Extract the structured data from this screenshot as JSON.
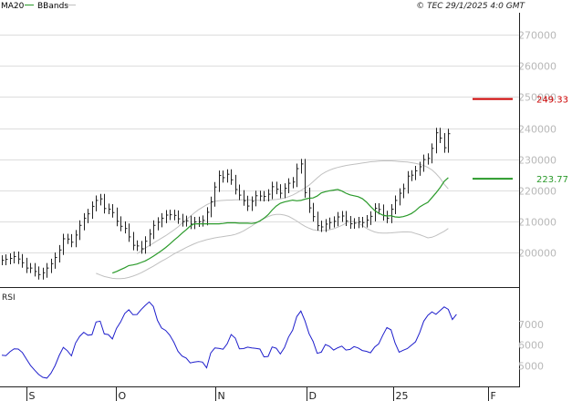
{
  "header": {
    "legend": [
      {
        "label": "MA20",
        "color": "#2a9a2a"
      },
      {
        "label": "BBands",
        "color": "#c0c0c0"
      }
    ],
    "copyright": "© TEC 29/1/2025 4:0 GMT"
  },
  "colors": {
    "candle": "#222222",
    "ma": "#2a9a2a",
    "bands": "#c0c0c0",
    "grid": "#dddddd",
    "rsi": "#1f1fcc",
    "resistance": "#cc0000",
    "support": "#2a9a2a",
    "axis": "#b8b8b8"
  },
  "chart_data": [
    {
      "type": "line",
      "panel": "price",
      "ylim": [
        189,
        277
      ],
      "y_ticks": [
        "270000",
        "260000",
        "250000",
        "240000",
        "230000",
        "220000",
        "210000",
        "200000"
      ],
      "x_ticks": [
        "S",
        "O",
        "N",
        "D",
        "25",
        "F"
      ],
      "price_close": [
        197.6,
        197.9,
        198.2,
        198.8,
        198.0,
        196.8,
        195.1,
        195.1,
        194.0,
        193.0,
        193.6,
        195.1,
        196.5,
        198.5,
        200.9,
        204.5,
        204.4,
        203.4,
        205.7,
        208.8,
        211.1,
        212.5,
        214.9,
        216.8,
        217.3,
        214.2,
        214.0,
        212.9,
        210.1,
        208.5,
        207.8,
        205.1,
        202.4,
        202.2,
        201.3,
        203.7,
        206.0,
        208.8,
        209.8,
        211.1,
        212.1,
        212.2,
        212.0,
        210.9,
        210.0,
        210.3,
        209.2,
        209.9,
        210.0,
        210.4,
        213.0,
        216.4,
        221.1,
        224.8,
        224.1,
        225.2,
        223.4,
        220.3,
        218.5,
        216.7,
        215.0,
        216.5,
        218.3,
        218.2,
        218.1,
        218.8,
        221.2,
        220.4,
        219.1,
        220.7,
        222.3,
        222.7,
        227.0,
        228.5,
        219.3,
        214.4,
        211.6,
        208.7,
        208.3,
        209.2,
        209.7,
        210.1,
        211.5,
        211.8,
        210.2,
        209.3,
        209.5,
        209.9,
        209.7,
        210.5,
        211.7,
        214.3,
        213.9,
        211.9,
        211.1,
        214.0,
        216.8,
        219.1,
        220.6,
        224.6,
        224.9,
        226.3,
        227.6,
        229.9,
        230.3,
        233.5,
        238.5,
        236.8,
        233.7,
        238.2
      ],
      "ma20": [
        193.5,
        194.0,
        194.6,
        195.2,
        195.9,
        196.1,
        196.4,
        196.9,
        197.4,
        198.1,
        198.9,
        199.8,
        200.7,
        201.7,
        202.8,
        204.0,
        205.1,
        206.3,
        207.4,
        208.6,
        209.3,
        209.3,
        209.3,
        209.3,
        209.3,
        209.3,
        209.3,
        209.4,
        209.6,
        209.6,
        209.6,
        209.5,
        209.5,
        209.5,
        209.4,
        209.6,
        210.2,
        211.1,
        212.2,
        213.7,
        215.0,
        215.9,
        216.3,
        216.6,
        216.9,
        216.7,
        216.8,
        217.2,
        217.5,
        217.6,
        218.2,
        219.2,
        219.6,
        219.9,
        220.1,
        220.3,
        219.8,
        219.1,
        218.6,
        218.3,
        218.0,
        217.4,
        216.3,
        214.9,
        213.6,
        212.7,
        212.1,
        211.8,
        211.9,
        211.5,
        211.4,
        211.6,
        212.0,
        212.6,
        213.5,
        214.7,
        215.5,
        216.2,
        217.7,
        219.2,
        220.9,
        222.9,
        224.1
      ],
      "bb_upper": [
        199.7,
        200.6,
        201.5,
        202.3,
        203.1,
        203.9,
        204.7,
        205.5,
        206.4,
        207.3,
        208.3,
        209.5,
        210.6,
        211.7,
        212.8,
        213.8,
        214.6,
        215.4,
        216.0,
        216.5,
        216.7,
        216.8,
        216.9,
        216.9,
        217.0,
        217.0,
        217.0,
        217.0,
        216.9,
        216.9,
        216.8,
        216.8,
        216.9,
        217.0,
        217.1,
        217.3,
        217.6,
        218.0,
        218.5,
        219.2,
        220.0,
        220.8,
        221.7,
        222.8,
        224.0,
        225.1,
        225.9,
        226.5,
        227.0,
        227.4,
        227.7,
        228.0,
        228.2,
        228.4,
        228.6,
        228.8,
        229.0,
        229.2,
        229.3,
        229.4,
        229.5,
        229.5,
        229.5,
        229.4,
        229.3,
        229.2,
        229.1,
        228.9,
        228.7,
        228.4,
        228.0,
        227.4,
        226.6,
        225.4,
        223.9,
        222.0,
        220.5
      ],
      "bb_lower": [
        193.4,
        192.9,
        192.4,
        192.1,
        191.8,
        191.7,
        191.7,
        191.8,
        192.1,
        192.5,
        193.0,
        193.6,
        194.3,
        195.0,
        195.7,
        196.5,
        197.3,
        198.0,
        198.8,
        199.6,
        200.3,
        201.0,
        201.7,
        202.3,
        202.9,
        203.4,
        203.8,
        204.2,
        204.5,
        204.8,
        205.0,
        205.2,
        205.4,
        205.6,
        205.9,
        206.4,
        207.0,
        207.8,
        208.6,
        209.5,
        210.3,
        211.0,
        211.6,
        212.1,
        212.3,
        212.3,
        212.1,
        211.7,
        211.0,
        210.2,
        209.3,
        208.5,
        207.9,
        207.4,
        207.2,
        207.1,
        207.2,
        207.4,
        207.7,
        208.2,
        208.8,
        209.5,
        210.0,
        210.1,
        209.6,
        208.8,
        207.9,
        207.2,
        206.7,
        206.4,
        206.3,
        206.3,
        206.4,
        206.5,
        206.6,
        206.7,
        206.7,
        206.6,
        206.2,
        205.8,
        205.3,
        204.8,
        205.0,
        205.5,
        206.2,
        206.9,
        207.8
      ],
      "levels": [
        {
          "label": "249.33",
          "value": 249.33,
          "kind": "resistance"
        },
        {
          "label": "223.77",
          "value": 223.77,
          "kind": "support"
        }
      ]
    },
    {
      "type": "line",
      "panel": "rsi",
      "title": "RSI",
      "ylim": [
        40,
        85
      ],
      "y_ticks": [
        "7000",
        "6000",
        "5000"
      ],
      "values": [
        55.1,
        54.9,
        56.8,
        58.2,
        58.1,
        56.4,
        53.3,
        50.2,
        47.9,
        45.8,
        44.4,
        44.0,
        46.4,
        50.1,
        55.0,
        58.9,
        57.3,
        54.8,
        61.0,
        64.2,
        66.2,
        64.8,
        65.0,
        71.2,
        71.6,
        65.4,
        65.1,
        63.0,
        68.1,
        71.2,
        75.3,
        77.1,
        74.7,
        74.8,
        77.2,
        79.2,
        80.9,
        78.7,
        72.0,
        68.3,
        67.1,
        64.8,
        61.4,
        57.0,
        54.7,
        53.7,
        51.4,
        51.8,
        52.1,
        51.8,
        49.0,
        56.2,
        58.6,
        58.4,
        58.0,
        60.6,
        65.1,
        63.4,
        58.2,
        58.3,
        59.0,
        58.6,
        58.4,
        58.1,
        54.3,
        54.5,
        59.1,
        58.5,
        55.7,
        58.8,
        63.9,
        67.2,
        73.8,
        76.5,
        71.7,
        65.5,
        61.8,
        56.0,
        56.6,
        60.3,
        59.4,
        57.6,
        58.7,
        59.5,
        57.6,
        57.9,
        59.3,
        58.6,
        57.4,
        57.0,
        56.3,
        59.0,
        60.6,
        64.8,
        68.5,
        67.4,
        61.1,
        56.6,
        57.5,
        58.3,
        60.0,
        61.6,
        66.0,
        71.6,
        74.4,
        76.1,
        74.9,
        76.7,
        78.5,
        77.3,
        72.4,
        74.9
      ]
    }
  ]
}
